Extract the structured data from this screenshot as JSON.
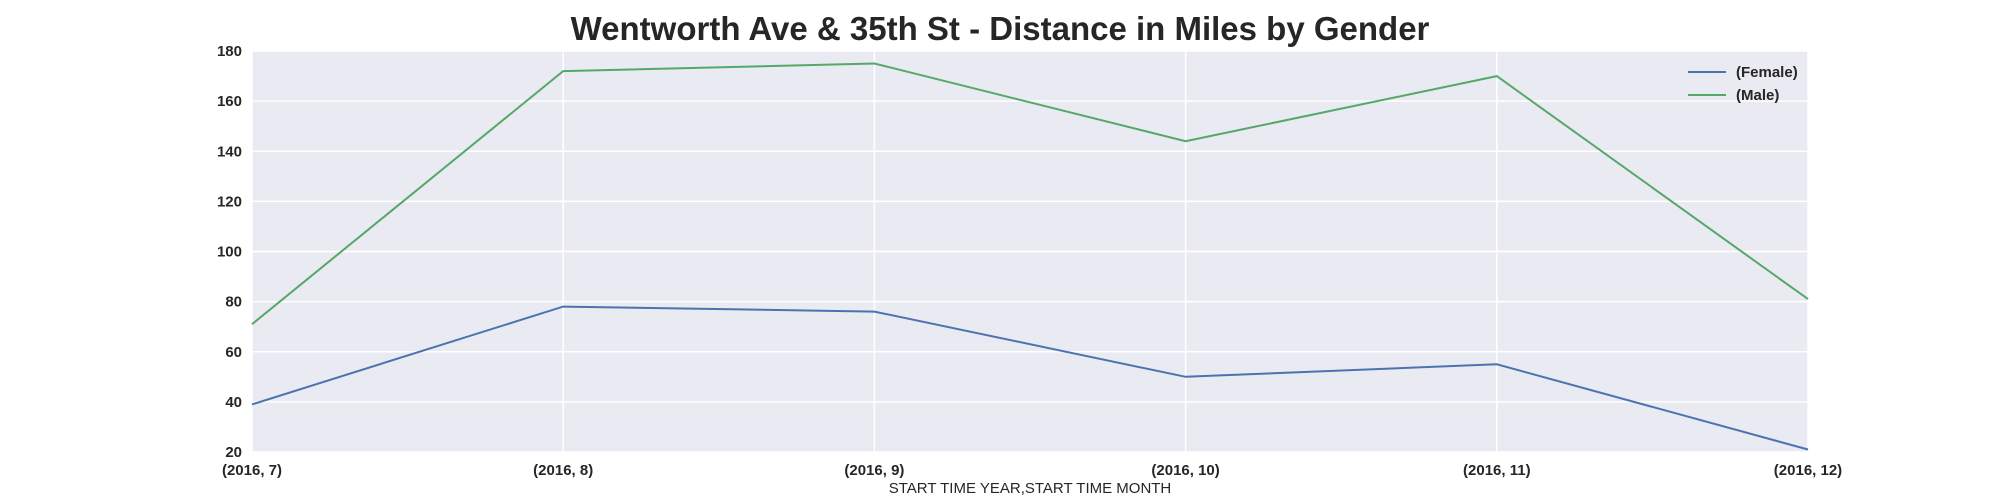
{
  "chart_data": {
    "type": "line",
    "title": "Wentworth Ave & 35th St - Distance in Miles by Gender",
    "xlabel": "START TIME YEAR,START TIME MONTH",
    "ylabel": "",
    "categories": [
      "(2016, 7)",
      "(2016, 8)",
      "(2016, 9)",
      "(2016, 10)",
      "(2016, 11)",
      "(2016, 12)"
    ],
    "ylim": [
      20,
      180
    ],
    "yticks": [
      20,
      40,
      60,
      80,
      100,
      120,
      140,
      160,
      180
    ],
    "grid": true,
    "legend_position": "top-right",
    "series": [
      {
        "name": "(Female)",
        "color": "#4c72b0",
        "values": [
          39,
          78,
          76,
          50,
          55,
          21
        ]
      },
      {
        "name": "(Male)",
        "color": "#55a868",
        "values": [
          71,
          172,
          175,
          144,
          170,
          81
        ]
      }
    ],
    "colors": {
      "plot_background": "#eaeaf2",
      "grid": "#ffffff",
      "text": "#262626"
    }
  }
}
